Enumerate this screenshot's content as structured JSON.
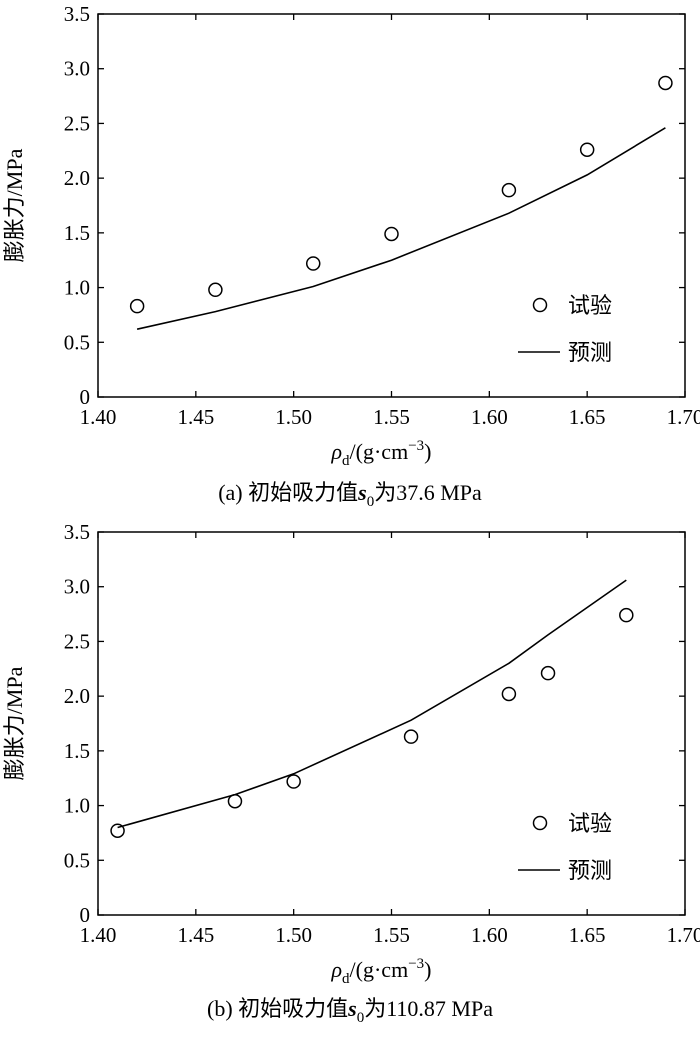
{
  "chart_data": [
    {
      "type": "scatter+line",
      "caption": {
        "prefix": "(a) 初始吸力值",
        "var": "s",
        "sub": "0",
        "suffix": "为37.6 MPa"
      },
      "xlabel": {
        "sym": "ρ",
        "sub": "d",
        "rest": "/(g·cm",
        "sup": "−3",
        "close": ")"
      },
      "ylabel": "膨胀力/MPa",
      "xlim": [
        1.4,
        1.7
      ],
      "ylim": [
        0,
        3.5
      ],
      "x_ticks": [
        "1.40",
        "1.45",
        "1.50",
        "1.55",
        "1.60",
        "1.65",
        "1.70"
      ],
      "y_ticks": [
        "0",
        "0.5",
        "1.0",
        "1.5",
        "2.0",
        "2.5",
        "3.0",
        "3.5"
      ],
      "legend": {
        "position": "lower-right",
        "test": "试验",
        "pred": "预测"
      },
      "series": [
        {
          "name": "试验",
          "kind": "marker",
          "x": [
            1.42,
            1.46,
            1.51,
            1.55,
            1.61,
            1.65,
            1.69
          ],
          "y": [
            0.83,
            0.98,
            1.22,
            1.49,
            1.89,
            2.26,
            2.87
          ]
        },
        {
          "name": "预测",
          "kind": "line",
          "x": [
            1.42,
            1.46,
            1.51,
            1.55,
            1.61,
            1.65,
            1.69
          ],
          "y": [
            0.62,
            0.78,
            1.01,
            1.25,
            1.68,
            2.03,
            2.46
          ]
        }
      ]
    },
    {
      "type": "scatter+line",
      "caption": {
        "prefix": "(b) 初始吸力值",
        "var": "s",
        "sub": "0",
        "suffix": "为110.87 MPa"
      },
      "xlabel": {
        "sym": "ρ",
        "sub": "d",
        "rest": "/(g·cm",
        "sup": "−3",
        "close": ")"
      },
      "ylabel": "膨胀力/MPa",
      "xlim": [
        1.4,
        1.7
      ],
      "ylim": [
        0,
        3.5
      ],
      "x_ticks": [
        "1.40",
        "1.45",
        "1.50",
        "1.55",
        "1.60",
        "1.65",
        "1.70"
      ],
      "y_ticks": [
        "0",
        "0.5",
        "1.0",
        "1.5",
        "2.0",
        "2.5",
        "3.0",
        "3.5"
      ],
      "legend": {
        "position": "lower-right",
        "test": "试验",
        "pred": "预测"
      },
      "series": [
        {
          "name": "试验",
          "kind": "marker",
          "x": [
            1.41,
            1.47,
            1.5,
            1.56,
            1.61,
            1.63,
            1.67
          ],
          "y": [
            0.77,
            1.04,
            1.22,
            1.63,
            2.02,
            2.21,
            2.74
          ]
        },
        {
          "name": "预测",
          "kind": "line",
          "x": [
            1.41,
            1.47,
            1.5,
            1.56,
            1.61,
            1.63,
            1.67
          ],
          "y": [
            0.8,
            1.1,
            1.29,
            1.78,
            2.3,
            2.56,
            3.06
          ]
        }
      ]
    }
  ]
}
